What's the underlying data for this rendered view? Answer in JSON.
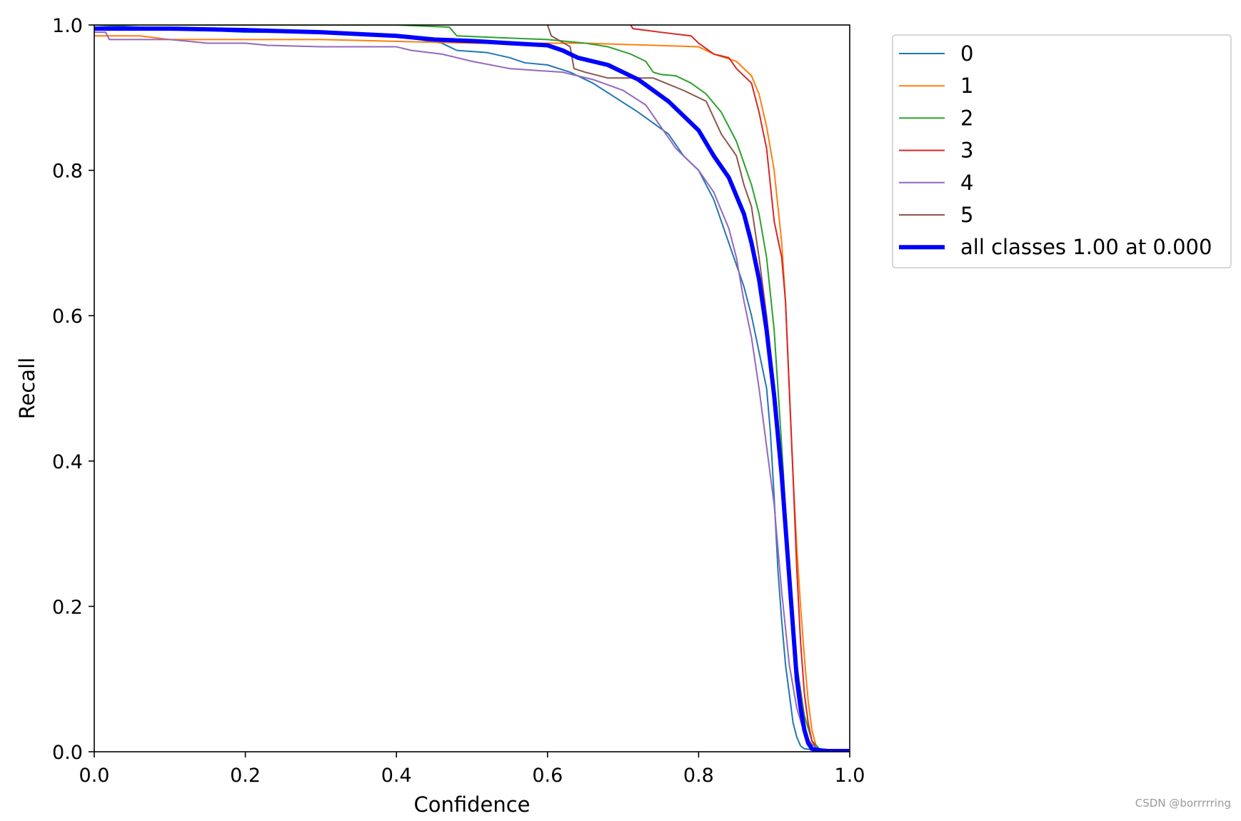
{
  "watermark": "CSDN @borrrrring",
  "chart_data": {
    "type": "line",
    "title": "",
    "xlabel": "Confidence",
    "ylabel": "Recall",
    "xlim": [
      0.0,
      1.0
    ],
    "ylim": [
      0.0,
      1.0
    ],
    "xticks": [
      "0.0",
      "0.2",
      "0.4",
      "0.6",
      "0.8",
      "1.0"
    ],
    "yticks": [
      "0.0",
      "0.2",
      "0.4",
      "0.6",
      "0.8",
      "1.0"
    ],
    "grid": false,
    "legend_position": "outside-upper-right",
    "series": [
      {
        "name": "0",
        "color": "#1f77b4",
        "line_weight": "thin",
        "x": [
          0.0,
          0.1,
          0.2,
          0.3,
          0.4,
          0.46,
          0.48,
          0.52,
          0.55,
          0.57,
          0.6,
          0.63,
          0.66,
          0.69,
          0.72,
          0.74,
          0.76,
          0.78,
          0.8,
          0.82,
          0.84,
          0.86,
          0.87,
          0.88,
          0.89,
          0.895,
          0.9,
          0.905,
          0.91,
          0.915,
          0.92,
          0.925,
          0.93,
          0.935,
          0.94,
          0.96,
          1.0
        ],
        "y": [
          1.0,
          0.995,
          0.99,
          0.99,
          0.985,
          0.975,
          0.965,
          0.962,
          0.955,
          0.948,
          0.945,
          0.935,
          0.92,
          0.9,
          0.88,
          0.865,
          0.85,
          0.82,
          0.8,
          0.76,
          0.7,
          0.64,
          0.6,
          0.55,
          0.5,
          0.44,
          0.35,
          0.25,
          0.18,
          0.12,
          0.08,
          0.04,
          0.02,
          0.008,
          0.004,
          0.002,
          0.0
        ]
      },
      {
        "name": "1",
        "color": "#ff7f0e",
        "line_weight": "thin",
        "x": [
          0.0,
          0.06,
          0.1,
          0.3,
          0.5,
          0.65,
          0.8,
          0.82,
          0.85,
          0.87,
          0.88,
          0.89,
          0.9,
          0.91,
          0.915,
          0.92,
          0.925,
          0.93,
          0.935,
          0.94,
          0.945,
          0.95,
          0.955,
          0.96,
          1.0
        ],
        "y": [
          0.985,
          0.985,
          0.98,
          0.98,
          0.975,
          0.975,
          0.97,
          0.96,
          0.95,
          0.93,
          0.905,
          0.86,
          0.8,
          0.7,
          0.62,
          0.5,
          0.38,
          0.28,
          0.2,
          0.13,
          0.07,
          0.03,
          0.01,
          0.003,
          0.0
        ]
      },
      {
        "name": "2",
        "color": "#2ca02c",
        "line_weight": "thin",
        "x": [
          0.0,
          0.2,
          0.4,
          0.47,
          0.48,
          0.55,
          0.6,
          0.65,
          0.68,
          0.71,
          0.73,
          0.74,
          0.75,
          0.77,
          0.79,
          0.81,
          0.83,
          0.85,
          0.87,
          0.88,
          0.89,
          0.9,
          0.91,
          0.92,
          0.93,
          0.94,
          0.95,
          0.96,
          1.0
        ],
        "y": [
          1.0,
          1.0,
          1.0,
          0.997,
          0.985,
          0.982,
          0.98,
          0.975,
          0.97,
          0.96,
          0.95,
          0.935,
          0.932,
          0.93,
          0.92,
          0.905,
          0.88,
          0.84,
          0.78,
          0.74,
          0.68,
          0.58,
          0.42,
          0.25,
          0.12,
          0.05,
          0.015,
          0.004,
          0.0
        ]
      },
      {
        "name": "3",
        "color": "#d62728",
        "line_weight": "thin",
        "x": [
          0.71,
          0.713,
          0.75,
          0.79,
          0.8,
          0.82,
          0.84,
          0.85,
          0.87,
          0.88,
          0.89,
          0.895,
          0.9,
          0.91,
          0.915,
          0.92,
          0.925,
          0.93,
          0.935,
          0.94,
          0.945,
          0.95,
          0.955,
          0.96,
          1.0
        ],
        "y": [
          1.0,
          0.995,
          0.99,
          0.985,
          0.975,
          0.96,
          0.955,
          0.94,
          0.92,
          0.88,
          0.83,
          0.78,
          0.73,
          0.68,
          0.62,
          0.5,
          0.38,
          0.25,
          0.15,
          0.08,
          0.04,
          0.015,
          0.006,
          0.002,
          0.0
        ]
      },
      {
        "name": "4",
        "color": "#9467bd",
        "line_weight": "thin",
        "x": [
          0.0,
          0.015,
          0.02,
          0.1,
          0.15,
          0.2,
          0.23,
          0.3,
          0.4,
          0.42,
          0.46,
          0.5,
          0.55,
          0.62,
          0.66,
          0.7,
          0.73,
          0.75,
          0.77,
          0.8,
          0.82,
          0.84,
          0.85,
          0.86,
          0.87,
          0.88,
          0.89,
          0.9,
          0.905,
          0.91,
          0.915,
          0.92,
          0.93,
          0.94,
          0.95,
          0.96,
          1.0
        ],
        "y": [
          0.99,
          0.99,
          0.98,
          0.98,
          0.975,
          0.975,
          0.972,
          0.97,
          0.97,
          0.965,
          0.96,
          0.95,
          0.94,
          0.935,
          0.925,
          0.91,
          0.89,
          0.86,
          0.83,
          0.8,
          0.77,
          0.72,
          0.68,
          0.62,
          0.57,
          0.5,
          0.42,
          0.34,
          0.28,
          0.22,
          0.17,
          0.12,
          0.06,
          0.025,
          0.01,
          0.003,
          0.0
        ]
      },
      {
        "name": "5",
        "color": "#8c564b",
        "line_weight": "thin",
        "x": [
          0.6,
          0.605,
          0.63,
          0.635,
          0.65,
          0.68,
          0.74,
          0.78,
          0.81,
          0.83,
          0.85,
          0.86,
          0.87,
          0.88,
          0.89,
          0.9,
          0.91,
          0.92,
          0.93,
          0.94,
          0.945,
          0.95,
          1.0
        ],
        "y": [
          1.0,
          0.985,
          0.97,
          0.94,
          0.935,
          0.927,
          0.927,
          0.91,
          0.895,
          0.85,
          0.82,
          0.78,
          0.75,
          0.68,
          0.6,
          0.5,
          0.38,
          0.25,
          0.12,
          0.04,
          0.01,
          0.003,
          0.0
        ]
      },
      {
        "name": "all classes 1.00 at 0.000",
        "color": "#0000ff",
        "line_weight": "thick",
        "x": [
          0.0,
          0.1,
          0.2,
          0.3,
          0.4,
          0.45,
          0.5,
          0.55,
          0.6,
          0.62,
          0.64,
          0.66,
          0.68,
          0.7,
          0.72,
          0.74,
          0.76,
          0.78,
          0.8,
          0.82,
          0.84,
          0.86,
          0.87,
          0.88,
          0.89,
          0.9,
          0.91,
          0.915,
          0.92,
          0.925,
          0.93,
          0.935,
          0.94,
          0.945,
          0.95,
          0.96,
          0.97,
          1.0
        ],
        "y": [
          0.995,
          0.995,
          0.993,
          0.99,
          0.985,
          0.98,
          0.978,
          0.975,
          0.972,
          0.965,
          0.955,
          0.95,
          0.945,
          0.935,
          0.925,
          0.91,
          0.895,
          0.875,
          0.855,
          0.82,
          0.79,
          0.74,
          0.7,
          0.65,
          0.58,
          0.49,
          0.38,
          0.31,
          0.24,
          0.17,
          0.1,
          0.06,
          0.03,
          0.012,
          0.004,
          0.002,
          0.001,
          0.001
        ]
      }
    ]
  }
}
